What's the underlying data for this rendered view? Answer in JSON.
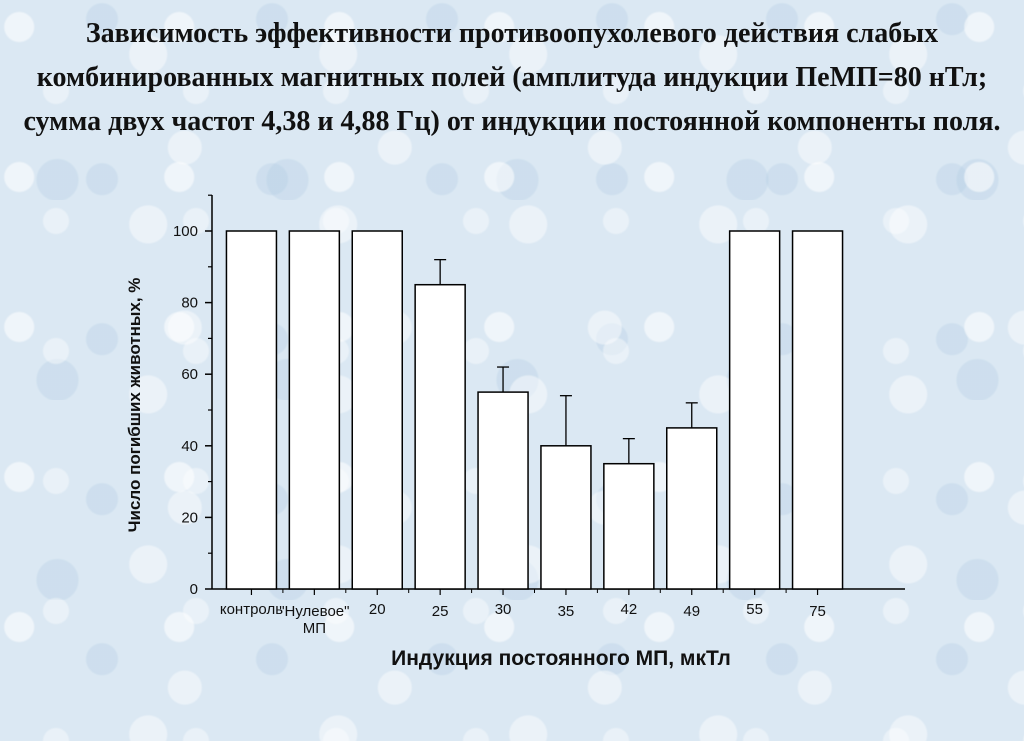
{
  "slide": {
    "title": "Зависимость эффективности противоопухолевого действия слабых комбинированных магнитных полей (амплитуда индукции ПеМП=80 нТл; сумма двух частот 4,38 и 4,88 Гц) от индукции  постоянной компоненты поля."
  },
  "chart_data": {
    "type": "bar",
    "categories": [
      [
        "контроль"
      ],
      [
        "\"Нулевое\"",
        "МП"
      ],
      [
        "20"
      ],
      [
        "25"
      ],
      [
        "30"
      ],
      [
        "35"
      ],
      [
        "42"
      ],
      [
        "49"
      ],
      [
        "55"
      ],
      [
        "75"
      ]
    ],
    "values": [
      100,
      100,
      100,
      85,
      55,
      40,
      35,
      45,
      100,
      100
    ],
    "error_plus": [
      0,
      0,
      0,
      7,
      7,
      14,
      7,
      7,
      0,
      0
    ],
    "xlabel": "Индукция постоянного МП, мкТл",
    "ylabel": "Число погибших животных, %",
    "ylim": [
      0,
      100
    ],
    "yticks": [
      0,
      20,
      40,
      60,
      80,
      100
    ],
    "grid": false,
    "bar_fill": "#ffffff",
    "stroke_color": "#000000"
  }
}
